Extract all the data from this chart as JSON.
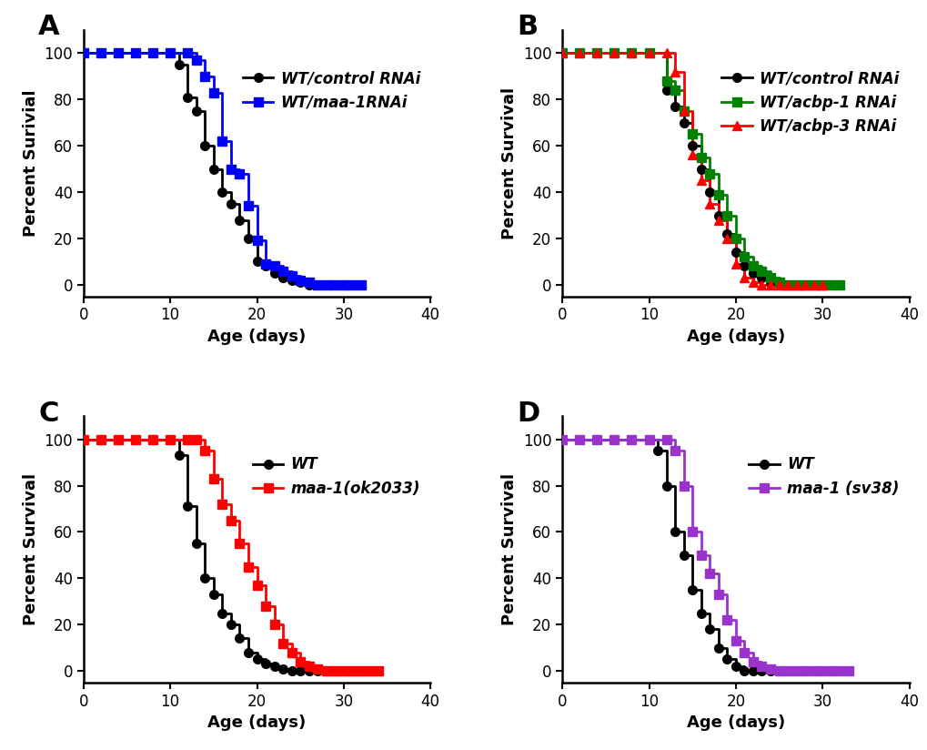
{
  "panel_A": {
    "label": "A",
    "ylabel": "Percent Surivial",
    "xlabel": "Age (days)",
    "xlim": [
      0,
      40
    ],
    "ylim": [
      -5,
      110
    ],
    "xticks": [
      0,
      10,
      20,
      30,
      40
    ],
    "yticks": [
      0,
      20,
      40,
      60,
      80,
      100
    ],
    "series": [
      {
        "label_normal": "WT/",
        "label_italic": "control RNAi",
        "color": "#000000",
        "marker": "o",
        "markersize": 7,
        "linewidth": 2.0,
        "x": [
          0,
          2,
          4,
          6,
          8,
          10,
          11,
          12,
          13,
          14,
          15,
          16,
          17,
          18,
          19,
          20,
          21,
          22,
          23,
          24,
          25,
          26,
          27,
          28,
          29,
          30
        ],
        "y": [
          100,
          100,
          100,
          100,
          100,
          100,
          95,
          81,
          75,
          60,
          50,
          40,
          35,
          28,
          20,
          10,
          8,
          5,
          3,
          2,
          1,
          0,
          0,
          0,
          0,
          0
        ]
      },
      {
        "label_normal": "WT/",
        "label_italic": "maa-1RNAi",
        "color": "#0000FF",
        "marker": "s",
        "markersize": 7,
        "linewidth": 2.0,
        "x": [
          0,
          2,
          4,
          6,
          8,
          10,
          12,
          13,
          14,
          15,
          16,
          17,
          18,
          19,
          20,
          21,
          22,
          23,
          24,
          25,
          26,
          27,
          28,
          29,
          30,
          31,
          32
        ],
        "y": [
          100,
          100,
          100,
          100,
          100,
          100,
          100,
          97,
          90,
          83,
          62,
          50,
          48,
          34,
          19,
          9,
          8,
          6,
          4,
          2,
          1,
          0,
          0,
          0,
          0,
          0,
          0
        ]
      }
    ]
  },
  "panel_B": {
    "label": "B",
    "ylabel": "Percent Survival",
    "xlabel": "Age (days)",
    "xlim": [
      0,
      40
    ],
    "ylim": [
      -5,
      110
    ],
    "xticks": [
      0,
      10,
      20,
      30,
      40
    ],
    "yticks": [
      0,
      20,
      40,
      60,
      80,
      100
    ],
    "series": [
      {
        "label_normal": "WT/",
        "label_italic": "control RNAi",
        "color": "#000000",
        "marker": "o",
        "markersize": 7,
        "linewidth": 2.0,
        "x": [
          0,
          2,
          4,
          6,
          8,
          10,
          12,
          13,
          14,
          15,
          16,
          17,
          18,
          19,
          20,
          21,
          22,
          23,
          24,
          25,
          26,
          27,
          28,
          29,
          30
        ],
        "y": [
          100,
          100,
          100,
          100,
          100,
          100,
          84,
          77,
          70,
          60,
          50,
          40,
          30,
          22,
          14,
          8,
          5,
          3,
          1,
          0,
          0,
          0,
          0,
          0,
          0
        ]
      },
      {
        "label_normal": "WT/",
        "label_italic": "acbp-1 RNAi",
        "color": "#008000",
        "marker": "s",
        "markersize": 7,
        "linewidth": 2.0,
        "x": [
          0,
          2,
          4,
          6,
          8,
          10,
          12,
          13,
          14,
          15,
          16,
          17,
          18,
          19,
          20,
          21,
          22,
          23,
          24,
          25,
          26,
          27,
          28,
          29,
          30,
          31,
          32
        ],
        "y": [
          100,
          100,
          100,
          100,
          100,
          100,
          88,
          84,
          75,
          65,
          55,
          48,
          39,
          30,
          20,
          12,
          8,
          6,
          3,
          1,
          0,
          0,
          0,
          0,
          0,
          0,
          0
        ]
      },
      {
        "label_normal": "WT/",
        "label_italic": "acbp-3 RNAi",
        "color": "#FF0000",
        "marker": "^",
        "markersize": 7,
        "linewidth": 2.0,
        "x": [
          0,
          2,
          4,
          6,
          8,
          10,
          12,
          13,
          14,
          15,
          16,
          17,
          18,
          19,
          20,
          21,
          22,
          23,
          24,
          25,
          26,
          27,
          28,
          29,
          30
        ],
        "y": [
          100,
          100,
          100,
          100,
          100,
          100,
          100,
          92,
          75,
          56,
          45,
          35,
          28,
          20,
          9,
          3,
          1,
          0,
          0,
          0,
          0,
          0,
          0,
          0,
          0
        ]
      }
    ]
  },
  "panel_C": {
    "label": "C",
    "ylabel": "Percent Survival",
    "xlabel": "Age (days)",
    "xlim": [
      0,
      40
    ],
    "ylim": [
      -5,
      110
    ],
    "xticks": [
      0,
      10,
      20,
      30,
      40
    ],
    "yticks": [
      0,
      20,
      40,
      60,
      80,
      100
    ],
    "series": [
      {
        "label_normal": "WT",
        "label_italic": "",
        "color": "#000000",
        "marker": "o",
        "markersize": 7,
        "linewidth": 2.0,
        "x": [
          0,
          2,
          4,
          6,
          8,
          10,
          11,
          12,
          13,
          14,
          15,
          16,
          17,
          18,
          19,
          20,
          21,
          22,
          23,
          24,
          25,
          26,
          27,
          28,
          29
        ],
        "y": [
          100,
          100,
          100,
          100,
          100,
          100,
          93,
          71,
          55,
          40,
          33,
          25,
          20,
          14,
          8,
          5,
          3,
          2,
          1,
          0,
          0,
          0,
          0,
          0,
          0
        ]
      },
      {
        "label_normal": "",
        "label_italic": "maa-1(ok2033)",
        "color": "#FF0000",
        "marker": "s",
        "markersize": 7,
        "linewidth": 2.0,
        "x": [
          0,
          2,
          4,
          6,
          8,
          10,
          12,
          13,
          14,
          15,
          16,
          17,
          18,
          19,
          20,
          21,
          22,
          23,
          24,
          25,
          26,
          27,
          28,
          29,
          30,
          31,
          32,
          33,
          34
        ],
        "y": [
          100,
          100,
          100,
          100,
          100,
          100,
          100,
          100,
          95,
          83,
          72,
          65,
          55,
          45,
          37,
          28,
          20,
          12,
          8,
          4,
          2,
          1,
          0,
          0,
          0,
          0,
          0,
          0,
          0
        ]
      }
    ]
  },
  "panel_D": {
    "label": "D",
    "ylabel": "Percent Survival",
    "xlabel": "Age (days)",
    "xlim": [
      0,
      40
    ],
    "ylim": [
      -5,
      110
    ],
    "xticks": [
      0,
      10,
      20,
      30,
      40
    ],
    "yticks": [
      0,
      20,
      40,
      60,
      80,
      100
    ],
    "series": [
      {
        "label_normal": "WT",
        "label_italic": "",
        "color": "#000000",
        "marker": "o",
        "markersize": 7,
        "linewidth": 2.0,
        "x": [
          0,
          2,
          4,
          6,
          8,
          10,
          11,
          12,
          13,
          14,
          15,
          16,
          17,
          18,
          19,
          20,
          21,
          22,
          23,
          24,
          25,
          26,
          27
        ],
        "y": [
          100,
          100,
          100,
          100,
          100,
          100,
          95,
          80,
          60,
          50,
          35,
          25,
          18,
          10,
          5,
          2,
          0,
          0,
          0,
          0,
          0,
          0,
          0
        ]
      },
      {
        "label_normal": "",
        "label_italic": "maa-1 (sv38)",
        "color": "#9933CC",
        "marker": "s",
        "markersize": 7,
        "linewidth": 2.0,
        "x": [
          0,
          2,
          4,
          6,
          8,
          10,
          12,
          13,
          14,
          15,
          16,
          17,
          18,
          19,
          20,
          21,
          22,
          23,
          24,
          25,
          26,
          27,
          28,
          29,
          30,
          31,
          32,
          33
        ],
        "y": [
          100,
          100,
          100,
          100,
          100,
          100,
          100,
          95,
          80,
          60,
          50,
          42,
          33,
          22,
          13,
          8,
          4,
          2,
          1,
          0,
          0,
          0,
          0,
          0,
          0,
          0,
          0,
          0
        ]
      }
    ]
  },
  "background_color": "#ffffff",
  "panel_label_fontsize": 22,
  "axis_label_fontsize": 13,
  "tick_fontsize": 12,
  "legend_fontsize": 12
}
